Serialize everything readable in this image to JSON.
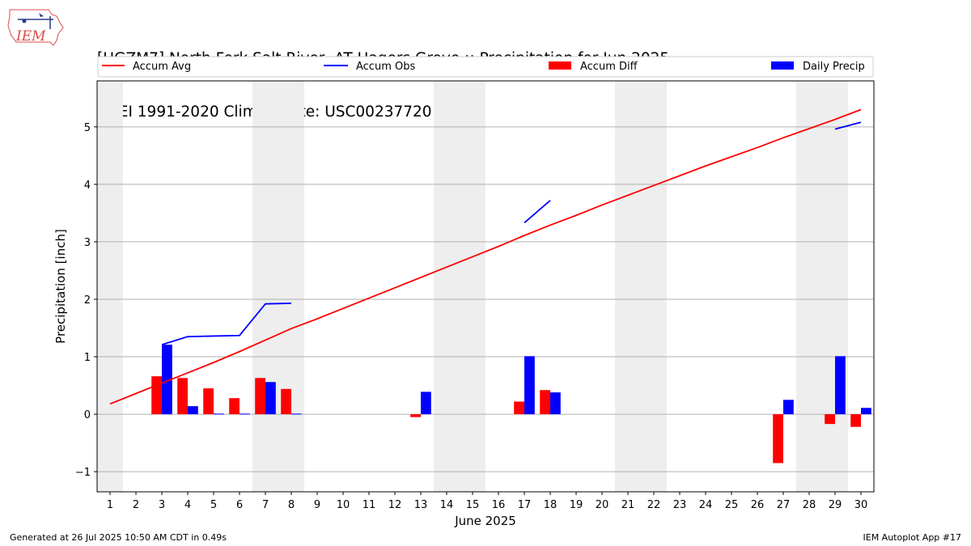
{
  "header": {
    "title_line1": "[HGZM7] North Fork Salt River  AT Hagers Grove :: Precipitation for Jun 2025",
    "title_line2": "NCEI 1991-2020 Climate Site: USC00237720"
  },
  "logo": {
    "text": "IEM"
  },
  "footer": {
    "left": "Generated at 26 Jul 2025 10:50 AM CDT in 0.49s",
    "right": "IEM Autoplot App #17"
  },
  "colors": {
    "avg": "#ff0000",
    "obs": "#0000ff",
    "diff": "#ff0000",
    "daily": "#0000ff",
    "weekend": "#eeeeee",
    "grid": "#b0b0b0"
  },
  "chart_data": {
    "type": "bar",
    "xlabel": "June 2025",
    "ylabel": "Precipitation [inch]",
    "xlim": [
      0.5,
      30.5
    ],
    "ylim": [
      -1.35,
      5.8
    ],
    "yticks": [
      -1,
      0,
      1,
      2,
      3,
      4,
      5
    ],
    "ytick_labels": [
      "−1",
      "0",
      "1",
      "2",
      "3",
      "4",
      "5"
    ],
    "x": [
      1,
      2,
      3,
      4,
      5,
      6,
      7,
      8,
      9,
      10,
      11,
      12,
      13,
      14,
      15,
      16,
      17,
      18,
      19,
      20,
      21,
      22,
      23,
      24,
      25,
      26,
      27,
      28,
      29,
      30
    ],
    "weekend_days": [
      1,
      7,
      8,
      14,
      15,
      21,
      22,
      28,
      29
    ],
    "grid": "y",
    "legend": {
      "placement": "top",
      "entries": [
        "Accum Avg",
        "Accum Obs",
        "Accum Diff",
        "Daily Precip"
      ]
    },
    "series": [
      {
        "name": "Accum Avg",
        "type": "line",
        "values": [
          0.18,
          0.36,
          0.54,
          0.72,
          0.9,
          1.09,
          1.29,
          1.49,
          1.66,
          1.84,
          2.02,
          2.2,
          2.38,
          2.56,
          2.74,
          2.92,
          3.11,
          3.29,
          3.46,
          3.64,
          3.81,
          3.98,
          4.15,
          4.32,
          4.48,
          4.64,
          4.81,
          4.97,
          5.13,
          5.3
        ]
      },
      {
        "name": "Accum Obs",
        "type": "line",
        "values": [
          null,
          null,
          1.21,
          1.35,
          1.36,
          1.37,
          1.92,
          1.93,
          null,
          null,
          null,
          null,
          null,
          null,
          null,
          null,
          3.33,
          3.72,
          null,
          null,
          null,
          null,
          null,
          null,
          null,
          null,
          null,
          null,
          4.96,
          5.08
        ]
      },
      {
        "name": "Accum Diff",
        "type": "bar",
        "values": [
          null,
          null,
          0.66,
          0.63,
          0.45,
          0.28,
          0.63,
          0.44,
          null,
          null,
          null,
          null,
          -0.05,
          null,
          null,
          null,
          0.22,
          0.42,
          null,
          null,
          null,
          null,
          null,
          null,
          null,
          null,
          -0.85,
          null,
          -0.17,
          -0.22
        ]
      },
      {
        "name": "Daily Precip",
        "type": "bar",
        "values": [
          null,
          null,
          1.21,
          0.14,
          0.01,
          0.01,
          0.56,
          0.01,
          null,
          null,
          null,
          null,
          0.39,
          null,
          null,
          null,
          1.01,
          0.38,
          null,
          null,
          null,
          null,
          null,
          null,
          null,
          null,
          0.25,
          null,
          1.01,
          0.11
        ]
      }
    ]
  }
}
